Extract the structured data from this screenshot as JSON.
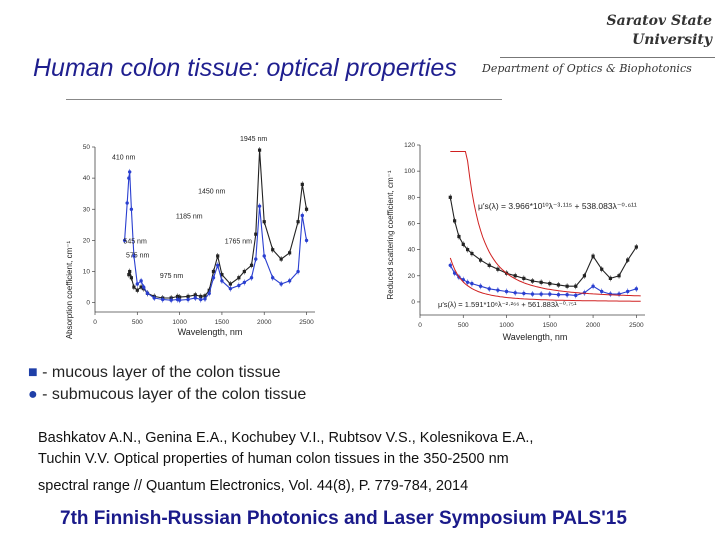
{
  "header": {
    "university_line1": "Saratov State",
    "university_line2": "University",
    "department": "Department of Optics & Biophotonics"
  },
  "slide": {
    "title": "Human colon tissue: optical properties"
  },
  "legend": {
    "mucous_symbol": "■",
    "mucous_label": "- mucous layer of the colon tissue",
    "submucous_symbol": "●",
    "submucous_label": "- submucous layer of the colon tissue"
  },
  "reference": {
    "line1": "Bashkatov A.N., Genina E.A., Kochubey V.I., Rubtsov V.S., Kolesnikova E.A.,",
    "line2": "Tuchin V.V. Optical properties of human colon tissues in the 350-2500 nm",
    "line3": "spectral range // Quantum Electronics, Vol. 44(8), P. 779-784, 2014"
  },
  "footer": {
    "text": "7th Finnish-Russian Photonics and Laser Symposium PALS'15"
  },
  "colors": {
    "mucous": "#222222",
    "submucous": "#2a3fd0",
    "fit": "#d02020",
    "title": "#1f1f8f"
  },
  "chart_data": [
    {
      "type": "line",
      "xlabel": "Wavelength, nm",
      "ylabel": "Absorption coefficient, cm⁻¹",
      "xlim": [
        0,
        2600
      ],
      "ylim": [
        -3,
        50
      ],
      "xticks": [
        0,
        500,
        1000,
        1500,
        2000,
        2500
      ],
      "yticks": [
        0,
        10,
        20,
        30,
        40,
        50
      ],
      "annotations": [
        {
          "text": "1945 nm",
          "x": 1945,
          "y": 52
        },
        {
          "text": "410 nm",
          "x": 410,
          "y": 46
        },
        {
          "text": "1450 nm",
          "x": 1450,
          "y": 35
        },
        {
          "text": "1185 nm",
          "x": 1185,
          "y": 27
        },
        {
          "text": "545 nm",
          "x": 545,
          "y": 19
        },
        {
          "text": "1765 nm",
          "x": 1765,
          "y": 19
        },
        {
          "text": "575 nm",
          "x": 575,
          "y": 14.5
        },
        {
          "text": "975 nm",
          "x": 975,
          "y": 8
        }
      ],
      "series": [
        {
          "name": "mucous",
          "x": [
            400,
            410,
            430,
            460,
            500,
            545,
            575,
            620,
            700,
            800,
            900,
            975,
            1000,
            1100,
            1185,
            1250,
            1300,
            1350,
            1400,
            1450,
            1500,
            1600,
            1700,
            1765,
            1850,
            1900,
            1945,
            2000,
            2100,
            2200,
            2300,
            2400,
            2450,
            2500
          ],
          "y": [
            9,
            10,
            8,
            5,
            4,
            5,
            4.5,
            3,
            2,
            1.5,
            1.5,
            2,
            1.8,
            2,
            2.5,
            2,
            2.2,
            4,
            10,
            15,
            9,
            6,
            8,
            10,
            12,
            22,
            49,
            26,
            17,
            14,
            16,
            26,
            38,
            30
          ]
        },
        {
          "name": "submucous",
          "x": [
            350,
            380,
            400,
            410,
            430,
            460,
            500,
            545,
            575,
            620,
            700,
            800,
            900,
            975,
            1000,
            1100,
            1185,
            1250,
            1300,
            1350,
            1400,
            1450,
            1500,
            1600,
            1700,
            1765,
            1850,
            1900,
            1945,
            2000,
            2100,
            2200,
            2300,
            2400,
            2450,
            2500
          ],
          "y": [
            20,
            32,
            40,
            42,
            30,
            15,
            6,
            7,
            5,
            3,
            1.5,
            1,
            0.8,
            1,
            0.8,
            1,
            1.5,
            1,
            1.2,
            3,
            8,
            12,
            7,
            4.5,
            5.5,
            6.5,
            8,
            14,
            31,
            15,
            8,
            6,
            7,
            10,
            28,
            20
          ]
        }
      ]
    },
    {
      "type": "line",
      "xlabel": "Wavelength, nm",
      "ylabel": "Reduced scattering coefficient, cm⁻¹",
      "xlim": [
        0,
        2600
      ],
      "ylim": [
        -10,
        120
      ],
      "xticks": [
        0,
        500,
        1000,
        1500,
        2000,
        2500
      ],
      "yticks": [
        0,
        20,
        40,
        60,
        80,
        100,
        120
      ],
      "equations": [
        "μ′s(λ) = 3.966*10¹⁰λ⁻³·¹¹⁵ + 538.083λ⁻⁰·⁶¹¹",
        "μ′s(λ) = 1.591*10⁸λ⁻²·²⁶⁶ + 561.883λ⁻⁰·⁷⁵¹"
      ],
      "series": [
        {
          "name": "mucous",
          "x": [
            350,
            400,
            450,
            500,
            550,
            600,
            700,
            800,
            900,
            1000,
            1100,
            1200,
            1300,
            1400,
            1500,
            1600,
            1700,
            1800,
            1900,
            2000,
            2100,
            2200,
            2300,
            2400,
            2500
          ],
          "y": [
            80,
            62,
            50,
            44,
            40,
            37,
            32,
            28,
            25,
            22,
            20,
            18,
            16,
            15,
            14,
            13,
            12,
            12,
            20,
            35,
            25,
            18,
            20,
            32,
            42
          ]
        },
        {
          "name": "submucous",
          "x": [
            350,
            400,
            450,
            500,
            550,
            600,
            700,
            800,
            900,
            1000,
            1100,
            1200,
            1300,
            1400,
            1500,
            1600,
            1700,
            1800,
            1900,
            2000,
            2100,
            2200,
            2300,
            2400,
            2500
          ],
          "y": [
            28,
            22,
            19,
            17,
            15,
            14,
            12,
            10,
            9,
            8,
            7,
            6.5,
            6,
            6,
            6,
            5.5,
            5.5,
            5,
            7,
            12,
            8,
            6,
            6,
            8,
            10
          ]
        }
      ]
    }
  ]
}
